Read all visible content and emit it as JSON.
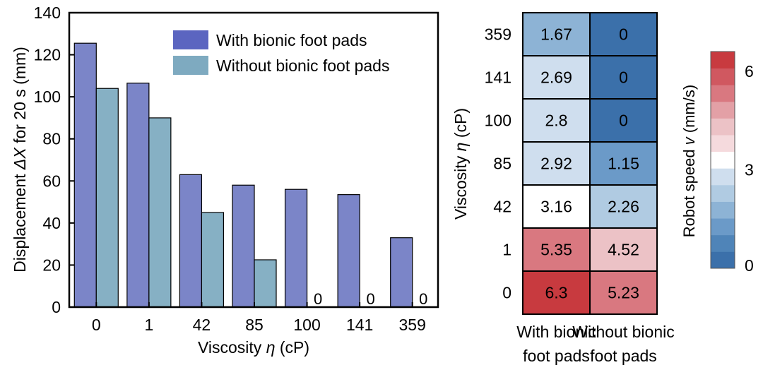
{
  "chart_data": [
    {
      "type": "bar",
      "ylabel_prefix": "Displacement ",
      "ylabel_symbol": "ΔX",
      "ylabel_suffix": " for 20 s (mm)",
      "xlabel_prefix": "Viscosity ",
      "xlabel_symbol": "η",
      "xlabel_suffix": " (cP)",
      "categories": [
        "0",
        "1",
        "42",
        "85",
        "100",
        "141",
        "359"
      ],
      "ylim": [
        0,
        140
      ],
      "yticks": [
        0,
        20,
        40,
        60,
        80,
        100,
        120,
        140
      ],
      "legend_position": "top-right",
      "series": [
        {
          "name": "With bionic foot pads",
          "color": "#7b85c8",
          "legend_color": "#5b65c0",
          "values": [
            125.5,
            106.5,
            63,
            58,
            56,
            53.5,
            33
          ]
        },
        {
          "name": "Without bionic foot pads",
          "color": "#86b0c4",
          "legend_color": "#7eaac0",
          "values": [
            104,
            90,
            45,
            22.5,
            0,
            0,
            0
          ]
        }
      ],
      "zero_labels": [
        "0",
        "0",
        "0"
      ]
    },
    {
      "type": "heatmap",
      "ylabel_prefix": "Viscosity ",
      "ylabel_symbol": "η",
      "ylabel_suffix": " (cP)",
      "rows": [
        "359",
        "141",
        "100",
        "85",
        "42",
        "1",
        "0"
      ],
      "columns": [
        {
          "line1": "With bionic",
          "line2": "foot pads"
        },
        {
          "line1": "Without bionic",
          "line2": "foot pads"
        }
      ],
      "values": [
        [
          1.67,
          0
        ],
        [
          2.69,
          0
        ],
        [
          2.8,
          0
        ],
        [
          2.92,
          1.15
        ],
        [
          3.16,
          2.26
        ],
        [
          5.35,
          4.52
        ],
        [
          6.3,
          5.23
        ]
      ],
      "value_labels": [
        [
          "1.67",
          "0"
        ],
        [
          "2.69",
          "0"
        ],
        [
          "2.8",
          "0"
        ],
        [
          "2.92",
          "1.15"
        ],
        [
          "3.16",
          "2.26"
        ],
        [
          "5.35",
          "4.52"
        ],
        [
          "6.3",
          "5.23"
        ]
      ],
      "colorbar": {
        "label_prefix": "Robot speed ",
        "label_symbol": "v",
        "label_suffix": " (mm/s)",
        "range": [
          0,
          6.6
        ],
        "ticks": [
          {
            "label": "0",
            "value": 0
          },
          {
            "label": "3",
            "value": 3
          },
          {
            "label": "6",
            "value": 6
          }
        ],
        "colors_bottom_to_top": [
          "#3b70aa",
          "#4f84b8",
          "#6b9ac8",
          "#8db3d5",
          "#b0cbe2",
          "#cfdeee",
          "#ffffff",
          "#f5dadd",
          "#ecc2c6",
          "#e3a0a6",
          "#d97880",
          "#d05860",
          "#c83a3f"
        ]
      }
    }
  ]
}
